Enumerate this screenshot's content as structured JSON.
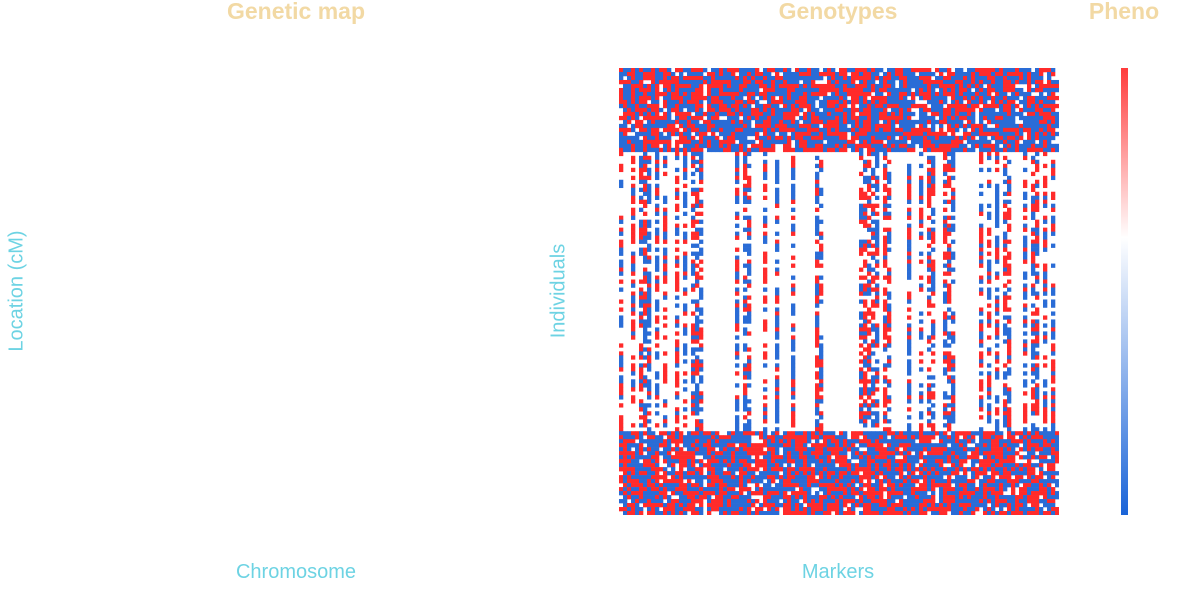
{
  "panels": {
    "map_title": "Genetic map",
    "genotypes_title": "Genotypes",
    "pheno_title": "Pheno"
  },
  "axes": {
    "map_y": "Location (cM)",
    "map_x": "Chromosome",
    "geno_y": "Individuals",
    "geno_x": "Markers"
  },
  "colors": {
    "title": "#f2d9a4",
    "axis_label": "#6dd3e3",
    "genotype_a": "#2a6cd6",
    "genotype_b": "#ff2b2b",
    "missing": "#ffffff",
    "pheno_high": "#ff3b3b",
    "pheno_mid": "#ffffff",
    "pheno_low": "#1a64d8"
  },
  "chart_data": [
    {
      "type": "heatmap",
      "panel": "genetic-map",
      "title": "Genetic map",
      "xlabel": "Chromosome",
      "ylabel": "Location (cM)"
    },
    {
      "type": "heatmap",
      "panel": "genotypes",
      "title": "Genotypes",
      "xlabel": "Markers",
      "ylabel": "Individuals",
      "n_markers": 110,
      "n_individuals": 112,
      "genotype_groups": [
        {
          "individuals": "top",
          "count": 21,
          "missing": "low"
        },
        {
          "individuals": "middle",
          "count": 70,
          "missing": "high"
        },
        {
          "individuals": "bottom",
          "count": 21,
          "missing": "low"
        }
      ],
      "values": [
        "A",
        "B",
        "missing"
      ]
    },
    {
      "type": "heatmap",
      "panel": "phenotype",
      "title": "Pheno",
      "colorscale": [
        "#1a64d8",
        "#ffffff",
        "#ff3b3b"
      ],
      "sorted": "descending"
    }
  ]
}
